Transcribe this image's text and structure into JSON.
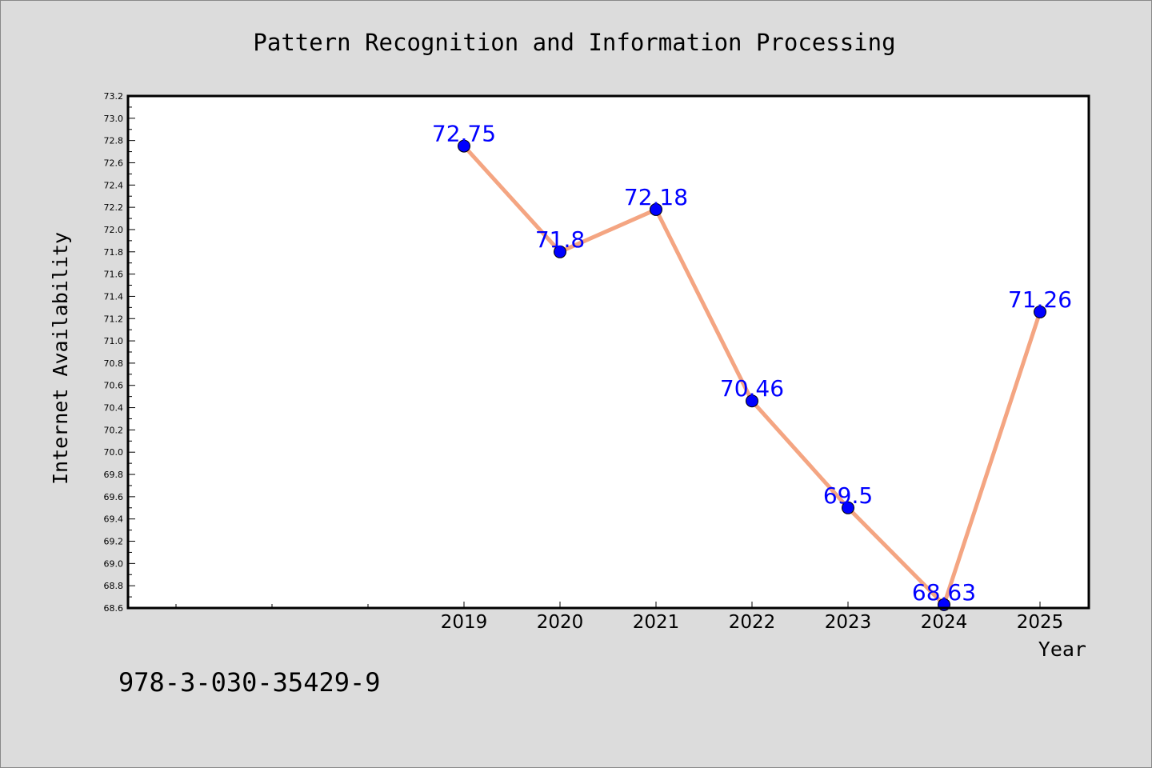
{
  "chart_data": {
    "type": "line",
    "title": "Pattern Recognition and Information Processing",
    "xlabel": "Year",
    "ylabel": "Internet Availability",
    "x": [
      "2019",
      "2020",
      "2021",
      "2022",
      "2023",
      "2024",
      "2025"
    ],
    "series": [
      {
        "values": [
          72.75,
          71.8,
          72.18,
          70.46,
          69.5,
          68.63,
          71.26
        ],
        "data_labels": [
          "72.75",
          "71.8",
          "72.18",
          "70.46",
          "69.5",
          "68.63",
          "71.26"
        ]
      }
    ],
    "ylim": [
      68.6,
      73.2
    ],
    "y_ticks": [
      "68.6",
      "68.8",
      "69.0",
      "69.2",
      "69.4",
      "69.6",
      "69.8",
      "70.0",
      "70.2",
      "70.4",
      "70.6",
      "70.8",
      "71.0",
      "71.2",
      "71.4",
      "71.6",
      "71.8",
      "72.0",
      "72.2",
      "72.4",
      "72.6",
      "72.8",
      "73.0",
      "73.2"
    ],
    "x_minor_ticks": 3,
    "grid": false,
    "legend": "none",
    "colors": {
      "line": "#f4a582",
      "marker": "#0000ff",
      "data_label": "#0000ff",
      "background": "#dcdcdc",
      "plot_background": "#ffffff"
    }
  },
  "footer": {
    "isbn": "978-3-030-35429-9"
  }
}
